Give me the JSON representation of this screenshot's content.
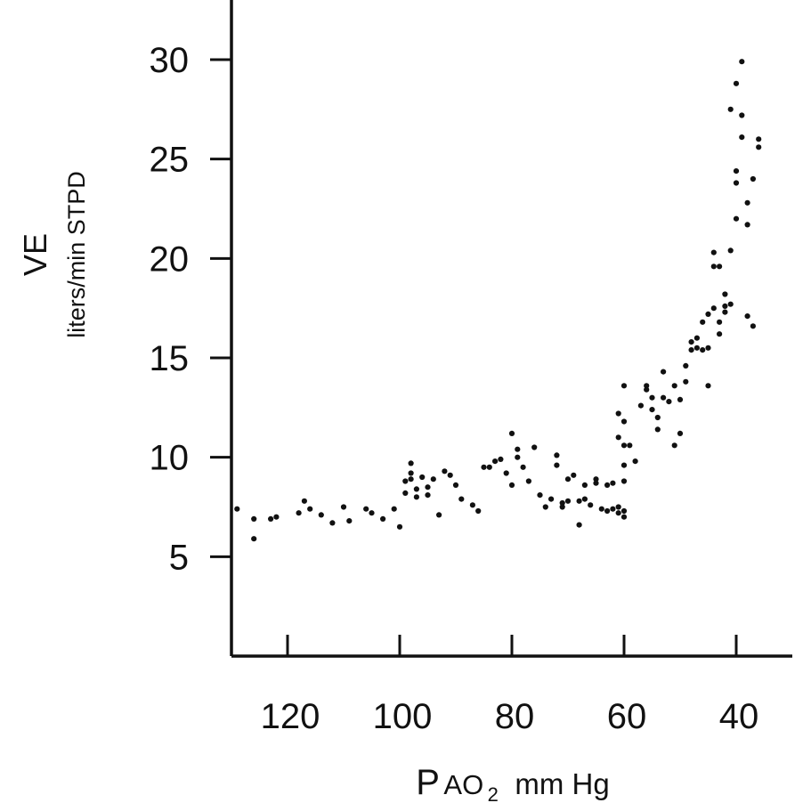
{
  "chart_data": {
    "type": "scatter",
    "title": "",
    "xlabel": {
      "p": "P",
      "ao": "AO",
      "sub": "2",
      "unit": "mm Hg"
    },
    "ylabel": {
      "main": "VE",
      "sub": "liters/min STPD"
    },
    "x_reversed": true,
    "xlim": [
      130,
      30
    ],
    "ylim": [
      0,
      33
    ],
    "xticks": [
      120,
      100,
      80,
      60,
      40
    ],
    "yticks": [
      5,
      10,
      15,
      20,
      25,
      30
    ],
    "grid": false,
    "marker_color": "#111111",
    "points": [
      [
        129,
        7.4
      ],
      [
        126,
        5.9
      ],
      [
        126,
        6.9
      ],
      [
        123,
        6.9
      ],
      [
        122,
        7.0
      ],
      [
        118,
        7.2
      ],
      [
        117,
        7.8
      ],
      [
        116,
        7.4
      ],
      [
        114,
        7.1
      ],
      [
        112,
        6.7
      ],
      [
        110,
        7.5
      ],
      [
        109,
        6.8
      ],
      [
        106,
        7.4
      ],
      [
        105,
        7.2
      ],
      [
        103,
        6.9
      ],
      [
        101,
        7.4
      ],
      [
        100,
        6.5
      ],
      [
        99,
        8.2
      ],
      [
        99,
        8.8
      ],
      [
        98,
        9.2
      ],
      [
        98,
        9.7
      ],
      [
        98,
        8.9
      ],
      [
        97,
        8.4
      ],
      [
        97,
        8.0
      ],
      [
        96,
        9.0
      ],
      [
        95,
        8.5
      ],
      [
        95,
        8.1
      ],
      [
        94,
        8.9
      ],
      [
        93,
        7.1
      ],
      [
        92,
        9.3
      ],
      [
        91,
        9.1
      ],
      [
        90,
        8.6
      ],
      [
        89,
        7.9
      ],
      [
        87,
        7.6
      ],
      [
        86,
        7.3
      ],
      [
        85,
        9.5
      ],
      [
        84,
        9.5
      ],
      [
        83,
        9.8
      ],
      [
        82,
        9.9
      ],
      [
        81,
        9.2
      ],
      [
        80,
        8.6
      ],
      [
        80,
        11.2
      ],
      [
        79,
        10.4
      ],
      [
        79,
        10.0
      ],
      [
        78,
        9.5
      ],
      [
        77,
        8.8
      ],
      [
        76,
        10.5
      ],
      [
        75,
        8.1
      ],
      [
        74,
        7.5
      ],
      [
        73,
        7.9
      ],
      [
        72,
        9.6
      ],
      [
        72,
        10.1
      ],
      [
        71,
        7.7
      ],
      [
        71,
        7.5
      ],
      [
        70,
        7.8
      ],
      [
        70,
        8.9
      ],
      [
        69,
        9.1
      ],
      [
        68,
        6.6
      ],
      [
        68,
        7.8
      ],
      [
        67,
        7.9
      ],
      [
        67,
        8.6
      ],
      [
        66,
        7.6
      ],
      [
        65,
        8.7
      ],
      [
        65,
        8.9
      ],
      [
        64,
        7.4
      ],
      [
        63,
        8.6
      ],
      [
        63,
        7.3
      ],
      [
        62,
        8.7
      ],
      [
        62,
        7.4
      ],
      [
        61,
        7.2
      ],
      [
        61,
        7.5
      ],
      [
        60,
        7.3
      ],
      [
        60,
        7.0
      ],
      [
        60,
        8.8
      ],
      [
        60,
        9.6
      ],
      [
        60,
        10.6
      ],
      [
        61,
        11.0
      ],
      [
        60,
        11.8
      ],
      [
        61,
        12.2
      ],
      [
        60,
        13.6
      ],
      [
        59,
        10.6
      ],
      [
        58,
        9.8
      ],
      [
        57,
        12.6
      ],
      [
        56,
        13.6
      ],
      [
        56,
        13.4
      ],
      [
        55,
        12.4
      ],
      [
        55,
        13.0
      ],
      [
        54,
        12.0
      ],
      [
        54,
        11.4
      ],
      [
        53,
        14.3
      ],
      [
        53,
        13.0
      ],
      [
        52,
        12.8
      ],
      [
        51,
        13.6
      ],
      [
        51,
        10.6
      ],
      [
        50,
        11.2
      ],
      [
        50,
        12.9
      ],
      [
        49,
        13.8
      ],
      [
        49,
        14.6
      ],
      [
        48,
        15.4
      ],
      [
        48,
        15.8
      ],
      [
        47,
        15.5
      ],
      [
        47,
        16.0
      ],
      [
        46,
        16.8
      ],
      [
        46,
        15.4
      ],
      [
        45,
        15.5
      ],
      [
        45,
        13.6
      ],
      [
        45,
        17.2
      ],
      [
        44,
        17.5
      ],
      [
        44,
        19.6
      ],
      [
        44,
        20.3
      ],
      [
        43,
        19.6
      ],
      [
        43,
        16.8
      ],
      [
        43,
        16.2
      ],
      [
        42,
        17.3
      ],
      [
        42,
        17.6
      ],
      [
        42,
        18.2
      ],
      [
        41,
        17.7
      ],
      [
        41,
        20.4
      ],
      [
        41,
        27.5
      ],
      [
        40,
        28.8
      ],
      [
        40,
        22.0
      ],
      [
        40,
        23.8
      ],
      [
        40,
        24.4
      ],
      [
        39,
        26.1
      ],
      [
        39,
        27.2
      ],
      [
        39,
        29.9
      ],
      [
        38,
        21.7
      ],
      [
        38,
        22.8
      ],
      [
        38,
        17.1
      ],
      [
        37,
        16.6
      ],
      [
        37,
        24.0
      ],
      [
        36,
        25.6
      ],
      [
        36,
        26.0
      ]
    ]
  }
}
